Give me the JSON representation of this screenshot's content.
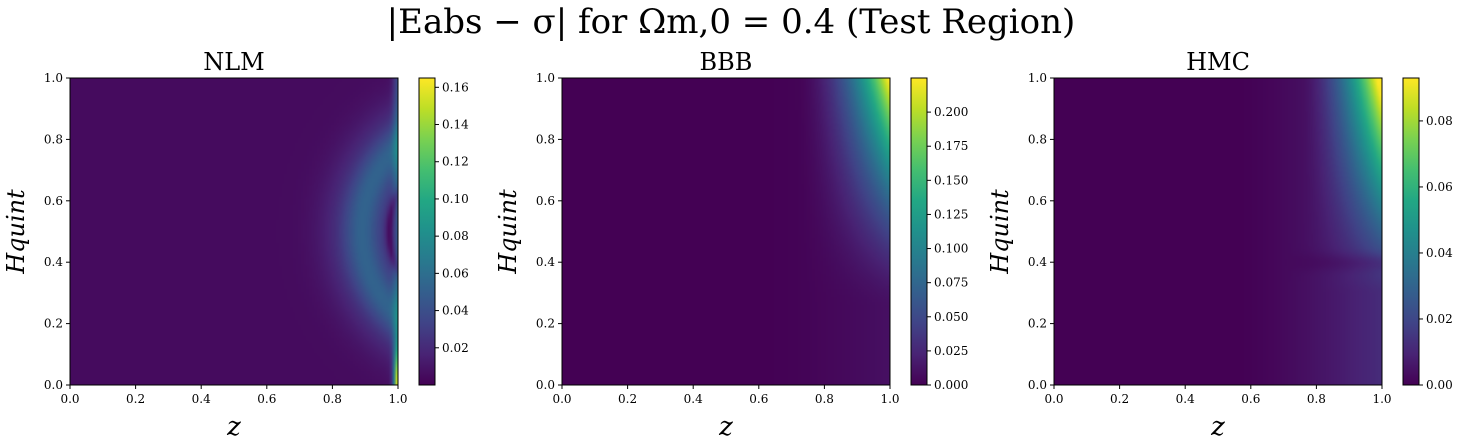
{
  "figure": {
    "supertitle": "|Eabs − σ| for Ωm,0 = 0.4 (Test Region)"
  },
  "chart_data": [
    {
      "type": "heatmap",
      "title": "NLM",
      "xlabel": "z",
      "ylabel": "Hquint",
      "xlim": [
        0.0,
        1.0
      ],
      "ylim": [
        0.0,
        1.0
      ],
      "x_ticks": [
        "0.0",
        "0.2",
        "0.4",
        "0.6",
        "0.8",
        "1.0"
      ],
      "y_ticks": [
        "0.0",
        "0.2",
        "0.4",
        "0.6",
        "0.8",
        "1.0"
      ],
      "colormap": "viridis",
      "colorbar_range": [
        0.0,
        0.165
      ],
      "colorbar_ticks": [
        "0.02",
        "0.04",
        "0.06",
        "0.08",
        "0.10",
        "0.12",
        "0.14",
        "0.16"
      ],
      "colorbar_tick_values": [
        0.02,
        0.04,
        0.06,
        0.08,
        0.1,
        0.12,
        0.14,
        0.16
      ],
      "model": "nlm"
    },
    {
      "type": "heatmap",
      "title": "BBB",
      "xlabel": "z",
      "ylabel": "Hquint",
      "xlim": [
        0.0,
        1.0
      ],
      "ylim": [
        0.0,
        1.0
      ],
      "x_ticks": [
        "0.0",
        "0.2",
        "0.4",
        "0.6",
        "0.8",
        "1.0"
      ],
      "y_ticks": [
        "0.0",
        "0.2",
        "0.4",
        "0.6",
        "0.8",
        "1.0"
      ],
      "colormap": "viridis",
      "colorbar_range": [
        0.0,
        0.225
      ],
      "colorbar_ticks": [
        "0.000",
        "0.025",
        "0.050",
        "0.075",
        "0.100",
        "0.125",
        "0.150",
        "0.175",
        "0.200"
      ],
      "colorbar_tick_values": [
        0.0,
        0.025,
        0.05,
        0.075,
        0.1,
        0.125,
        0.15,
        0.175,
        0.2
      ],
      "model": "bbb"
    },
    {
      "type": "heatmap",
      "title": "HMC",
      "xlabel": "z",
      "ylabel": "Hquint",
      "xlim": [
        0.0,
        1.0
      ],
      "ylim": [
        0.0,
        1.0
      ],
      "x_ticks": [
        "0.0",
        "0.2",
        "0.4",
        "0.6",
        "0.8",
        "1.0"
      ],
      "y_ticks": [
        "0.0",
        "0.2",
        "0.4",
        "0.6",
        "0.8",
        "1.0"
      ],
      "colormap": "viridis",
      "colorbar_range": [
        0.0,
        0.093
      ],
      "colorbar_ticks": [
        "0.00",
        "0.02",
        "0.04",
        "0.06",
        "0.08"
      ],
      "colorbar_tick_values": [
        0.0,
        0.02,
        0.04,
        0.06,
        0.08
      ],
      "model": "hmc"
    }
  ]
}
